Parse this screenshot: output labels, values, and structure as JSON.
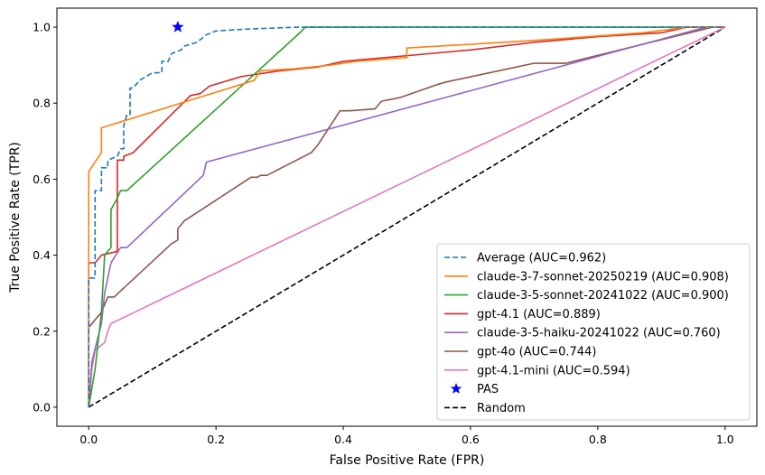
{
  "chart_data": {
    "type": "line",
    "title": "",
    "xlabel": "False Positive Rate (FPR)",
    "ylabel": "True Positive Rate (TPR)",
    "xlim": [
      -0.05,
      1.05
    ],
    "ylim": [
      -0.05,
      1.05
    ],
    "xticks": [
      0.0,
      0.2,
      0.4,
      0.6,
      0.8,
      1.0
    ],
    "yticks": [
      0.0,
      0.2,
      0.4,
      0.6,
      0.8,
      1.0
    ],
    "xtick_labels": [
      "0.0",
      "0.2",
      "0.4",
      "0.6",
      "0.8",
      "1.0"
    ],
    "ytick_labels": [
      "0.0",
      "0.2",
      "0.4",
      "0.6",
      "0.8",
      "1.0"
    ],
    "grid": false,
    "legend_position": "bottom-right",
    "series": [
      {
        "name": "Average (AUC=0.962)",
        "color": "#1f77b4",
        "style": "dashed",
        "points": [
          [
            0,
            0
          ],
          [
            0,
            0.34
          ],
          [
            0.01,
            0.34
          ],
          [
            0.01,
            0.57
          ],
          [
            0.02,
            0.57
          ],
          [
            0.02,
            0.63
          ],
          [
            0.03,
            0.63
          ],
          [
            0.03,
            0.65
          ],
          [
            0.045,
            0.66
          ],
          [
            0.05,
            0.68
          ],
          [
            0.055,
            0.68
          ],
          [
            0.055,
            0.74
          ],
          [
            0.06,
            0.77
          ],
          [
            0.065,
            0.77
          ],
          [
            0.065,
            0.84
          ],
          [
            0.07,
            0.84
          ],
          [
            0.08,
            0.86
          ],
          [
            0.09,
            0.87
          ],
          [
            0.1,
            0.88
          ],
          [
            0.115,
            0.88
          ],
          [
            0.115,
            0.91
          ],
          [
            0.125,
            0.91
          ],
          [
            0.13,
            0.93
          ],
          [
            0.145,
            0.94
          ],
          [
            0.15,
            0.95
          ],
          [
            0.17,
            0.96
          ],
          [
            0.185,
            0.98
          ],
          [
            0.2,
            0.99
          ],
          [
            0.25,
            0.995
          ],
          [
            0.33,
            1.0
          ],
          [
            0.5,
            1.0
          ],
          [
            1.0,
            1.0
          ]
        ]
      },
      {
        "name": "claude-3-7-sonnet-20250219 (AUC=0.908)",
        "color": "#ff7f0e",
        "style": "solid",
        "points": [
          [
            0,
            0
          ],
          [
            0,
            0.62
          ],
          [
            0.02,
            0.67
          ],
          [
            0.02,
            0.735
          ],
          [
            0.26,
            0.86
          ],
          [
            0.27,
            0.885
          ],
          [
            0.32,
            0.89
          ],
          [
            0.38,
            0.9
          ],
          [
            0.42,
            0.91
          ],
          [
            0.5,
            0.92
          ],
          [
            0.5,
            0.945
          ],
          [
            0.7,
            0.965
          ],
          [
            0.87,
            0.985
          ],
          [
            0.94,
            1.0
          ],
          [
            1.0,
            1.0
          ]
        ]
      },
      {
        "name": "claude-3-5-sonnet-20241022 (AUC=0.900)",
        "color": "#2ca02c",
        "style": "solid",
        "points": [
          [
            0,
            0
          ],
          [
            0.01,
            0.1
          ],
          [
            0.02,
            0.25
          ],
          [
            0.025,
            0.4
          ],
          [
            0.035,
            0.42
          ],
          [
            0.035,
            0.52
          ],
          [
            0.045,
            0.55
          ],
          [
            0.05,
            0.57
          ],
          [
            0.06,
            0.57
          ],
          [
            0.335,
            0.99
          ],
          [
            0.34,
            1.0
          ],
          [
            1.0,
            1.0
          ]
        ]
      },
      {
        "name": "gpt-4.1 (AUC=0.889)",
        "color": "#d62728",
        "style": "solid",
        "points": [
          [
            0,
            0
          ],
          [
            0,
            0.38
          ],
          [
            0.01,
            0.38
          ],
          [
            0.02,
            0.4
          ],
          [
            0.045,
            0.41
          ],
          [
            0.045,
            0.65
          ],
          [
            0.055,
            0.65
          ],
          [
            0.055,
            0.66
          ],
          [
            0.07,
            0.67
          ],
          [
            0.1,
            0.72
          ],
          [
            0.13,
            0.77
          ],
          [
            0.16,
            0.82
          ],
          [
            0.175,
            0.825
          ],
          [
            0.19,
            0.845
          ],
          [
            0.24,
            0.87
          ],
          [
            0.3,
            0.885
          ],
          [
            0.33,
            0.89
          ],
          [
            0.36,
            0.895
          ],
          [
            0.4,
            0.91
          ],
          [
            0.5,
            0.925
          ],
          [
            0.6,
            0.94
          ],
          [
            0.7,
            0.96
          ],
          [
            0.8,
            0.975
          ],
          [
            0.9,
            0.985
          ],
          [
            0.94,
            1.0
          ],
          [
            1.0,
            1.0
          ]
        ]
      },
      {
        "name": "claude-3-5-haiku-20241022 (AUC=0.760)",
        "color": "#9467bd",
        "style": "solid",
        "points": [
          [
            0,
            0
          ],
          [
            0.005,
            0.12
          ],
          [
            0.02,
            0.22
          ],
          [
            0.025,
            0.3
          ],
          [
            0.035,
            0.38
          ],
          [
            0.05,
            0.42
          ],
          [
            0.06,
            0.42
          ],
          [
            0.18,
            0.61
          ],
          [
            0.185,
            0.645
          ],
          [
            0.97,
            1.0
          ],
          [
            1.0,
            1.0
          ]
        ]
      },
      {
        "name": "gpt-4o (AUC=0.744)",
        "color": "#8c564b",
        "style": "solid",
        "points": [
          [
            0,
            0
          ],
          [
            0,
            0.21
          ],
          [
            0.02,
            0.25
          ],
          [
            0.03,
            0.29
          ],
          [
            0.04,
            0.29
          ],
          [
            0.13,
            0.43
          ],
          [
            0.14,
            0.44
          ],
          [
            0.14,
            0.47
          ],
          [
            0.15,
            0.49
          ],
          [
            0.255,
            0.605
          ],
          [
            0.265,
            0.605
          ],
          [
            0.27,
            0.61
          ],
          [
            0.28,
            0.61
          ],
          [
            0.35,
            0.67
          ],
          [
            0.355,
            0.68
          ],
          [
            0.36,
            0.69
          ],
          [
            0.395,
            0.78
          ],
          [
            0.41,
            0.78
          ],
          [
            0.45,
            0.785
          ],
          [
            0.46,
            0.805
          ],
          [
            0.49,
            0.815
          ],
          [
            0.55,
            0.85
          ],
          [
            0.56,
            0.855
          ],
          [
            0.63,
            0.88
          ],
          [
            0.7,
            0.905
          ],
          [
            0.75,
            0.905
          ],
          [
            0.98,
            1.0
          ],
          [
            1.0,
            1.0
          ]
        ]
      },
      {
        "name": "gpt-4.1-mini (AUC=0.594)",
        "color": "#e377c2",
        "style": "solid",
        "points": [
          [
            0,
            0
          ],
          [
            0.005,
            0.1
          ],
          [
            0.01,
            0.15
          ],
          [
            0.025,
            0.17
          ],
          [
            0.03,
            0.2
          ],
          [
            0.035,
            0.22
          ],
          [
            1.0,
            1.0
          ]
        ]
      },
      {
        "name": "PAS",
        "color": "#0000ff",
        "style": "marker-star",
        "points": [
          [
            0.14,
            1.0
          ]
        ]
      },
      {
        "name": "Random",
        "color": "#000000",
        "style": "dashed",
        "points": [
          [
            0,
            0
          ],
          [
            1,
            1
          ]
        ]
      }
    ]
  }
}
